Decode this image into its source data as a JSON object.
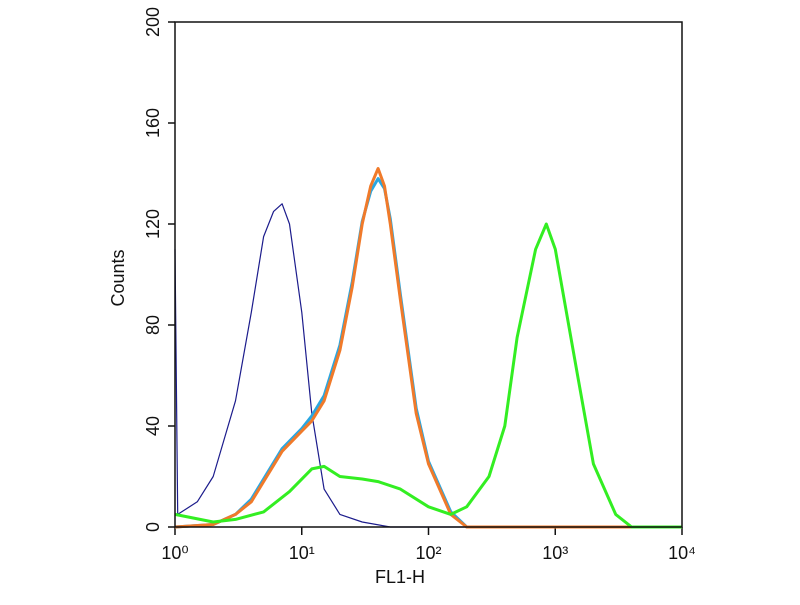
{
  "chart_data": {
    "type": "line",
    "x_label": "FL1-H",
    "y_label": "Counts",
    "xscale": "log",
    "xlim": [
      1,
      10000
    ],
    "xticks": [
      {
        "value": 1,
        "label": "10⁰"
      },
      {
        "value": 10,
        "label": "10¹"
      },
      {
        "value": 100,
        "label": "10²"
      },
      {
        "value": 1000,
        "label": "10³"
      },
      {
        "value": 10000,
        "label": "10⁴"
      }
    ],
    "ylim": [
      0,
      200
    ],
    "yticks": [
      0,
      40,
      80,
      120,
      160,
      200
    ],
    "grid": false,
    "series": [
      {
        "color": "#1c1c8c",
        "width": 1.2,
        "x": [
          1,
          1.05,
          1.5,
          2,
          3,
          4,
          5,
          6,
          7,
          8,
          10,
          12,
          15,
          20,
          30,
          50,
          100,
          10000
        ],
        "values": [
          110,
          5,
          10,
          20,
          50,
          85,
          115,
          125,
          128,
          120,
          85,
          45,
          15,
          5,
          2,
          0,
          0,
          0
        ]
      },
      {
        "color": "#2aa6e0",
        "width": 3,
        "x": [
          1,
          2,
          3,
          4,
          5,
          7,
          10,
          12,
          15,
          20,
          25,
          30,
          35,
          40,
          45,
          50,
          60,
          80,
          100,
          150,
          200,
          10000
        ],
        "values": [
          0,
          1,
          5,
          11,
          19,
          31,
          39,
          44,
          52,
          72,
          97,
          121,
          133,
          138,
          134,
          122,
          92,
          47,
          26,
          6,
          0,
          0
        ]
      },
      {
        "color": "#f07a2a",
        "width": 3,
        "x": [
          1,
          2,
          3,
          4,
          5,
          7,
          10,
          12,
          15,
          20,
          25,
          30,
          35,
          40,
          45,
          50,
          60,
          80,
          100,
          150,
          200,
          10000
        ],
        "values": [
          0,
          1,
          5,
          10,
          18,
          30,
          38,
          42,
          50,
          70,
          95,
          120,
          135,
          142,
          135,
          120,
          90,
          45,
          25,
          5,
          0,
          0
        ]
      },
      {
        "color": "#33ee22",
        "width": 3,
        "x": [
          1,
          2,
          3,
          5,
          8,
          12,
          15,
          20,
          30,
          40,
          60,
          100,
          150,
          200,
          300,
          400,
          500,
          700,
          850,
          1000,
          1500,
          2000,
          3000,
          4000,
          10000
        ],
        "values": [
          5,
          2,
          3,
          6,
          14,
          23,
          24,
          20,
          19,
          18,
          15,
          8,
          5,
          8,
          20,
          40,
          75,
          110,
          120,
          110,
          60,
          25,
          5,
          0,
          0
        ]
      }
    ]
  }
}
